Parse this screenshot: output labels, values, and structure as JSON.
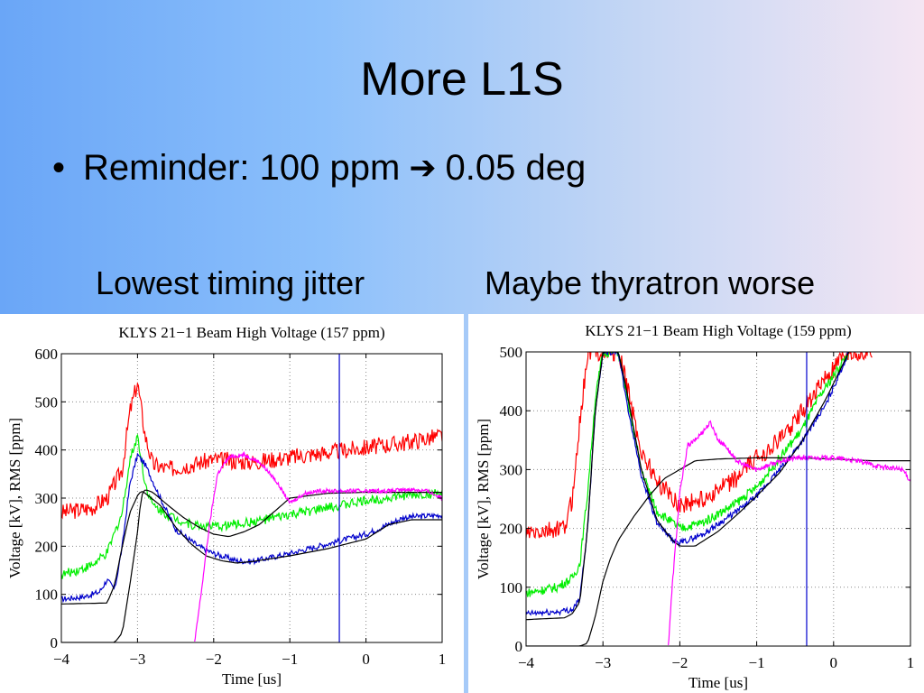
{
  "slide": {
    "title": "More L1S",
    "bullet_prefix": "Reminder: 100 ppm",
    "bullet_suffix": "0.05 deg",
    "caption_left": "Lowest timing jitter",
    "caption_right": "Maybe thyratron worse"
  },
  "chart_data": [
    {
      "type": "line",
      "title": "KLYS 21−1 Beam High Voltage (157 ppm)",
      "xlabel": "Time [us]",
      "ylabel": "Voltage [kV], RMS [ppm]",
      "xlim": [
        -4,
        1
      ],
      "ylim": [
        0,
        600
      ],
      "xticks": [
        "−4",
        "−3",
        "−2",
        "−1",
        "0",
        "1"
      ],
      "yticks": [
        "0",
        "100",
        "200",
        "300",
        "400",
        "500",
        "600"
      ],
      "grid": true,
      "vline_x": -0.35,
      "vline_color": "#0000cc",
      "series": [
        {
          "color": "#ff0000",
          "noise": 18,
          "x": [
            -4,
            -3.6,
            -3.4,
            -3.2,
            -3.1,
            -3.0,
            -2.9,
            -2.8,
            -2.6,
            -2.3,
            -2.0,
            -1.5,
            -1.0,
            -0.5,
            0.0,
            0.5,
            1.0
          ],
          "y": [
            270,
            280,
            300,
            360,
            480,
            540,
            430,
            370,
            360,
            370,
            380,
            375,
            385,
            395,
            405,
            415,
            430
          ]
        },
        {
          "color": "#00ee00",
          "noise": 10,
          "x": [
            -4,
            -3.6,
            -3.4,
            -3.2,
            -3.1,
            -3.0,
            -2.9,
            -2.8,
            -2.6,
            -2.3,
            -2.0,
            -1.5,
            -1.0,
            -0.5,
            0.0,
            0.5,
            1.0
          ],
          "y": [
            140,
            160,
            185,
            270,
            380,
            430,
            330,
            285,
            265,
            245,
            240,
            250,
            265,
            280,
            295,
            305,
            310
          ]
        },
        {
          "color": "#0000cc",
          "noise": 6,
          "x": [
            -4,
            -3.7,
            -3.5,
            -3.4,
            -3.3,
            -3.2,
            -3.1,
            -3.0,
            -2.9,
            -2.7,
            -2.5,
            -2.2,
            -2.0,
            -1.7,
            -1.5,
            -1.0,
            -0.5,
            0.0,
            0.5,
            1.0
          ],
          "y": [
            90,
            95,
            105,
            130,
            110,
            200,
            330,
            390,
            370,
            300,
            235,
            200,
            185,
            170,
            168,
            185,
            205,
            225,
            260,
            265
          ]
        },
        {
          "color": "#000000",
          "noise": 0,
          "x": [
            -4,
            -3.4,
            -3.3,
            -3.2,
            -3.1,
            -3.0,
            -2.95,
            -2.9,
            -2.7,
            -2.5,
            -2.3,
            -2.1,
            -1.9,
            -1.7,
            -1.5,
            -1.0,
            -0.5,
            0.0,
            0.3,
            0.6,
            1.0
          ],
          "y": [
            80,
            82,
            120,
            200,
            270,
            305,
            315,
            310,
            285,
            240,
            205,
            180,
            170,
            165,
            168,
            180,
            195,
            215,
            245,
            255,
            255
          ]
        },
        {
          "color": "#000000",
          "noise": 0,
          "x": [
            -4,
            -3.5,
            -3.3,
            -3.2,
            -3.1,
            -3.0,
            -2.95,
            -2.9,
            -2.8,
            -2.6,
            -2.4,
            -2.2,
            -2.0,
            -1.8,
            -1.6,
            -1.4,
            -1.0,
            -0.5,
            0.0,
            0.5,
            1.0
          ],
          "y": [
            0,
            0,
            0,
            20,
            120,
            230,
            305,
            318,
            312,
            285,
            260,
            240,
            225,
            220,
            230,
            245,
            300,
            310,
            312,
            312,
            312
          ]
        },
        {
          "color": "#ff00ff",
          "noise": 4,
          "x": [
            -2.25,
            -2.15,
            -2.05,
            -1.95,
            -1.8,
            -1.6,
            -1.4,
            -1.2,
            -1.0,
            -0.8,
            -0.6,
            -0.3,
            0.0,
            0.3,
            0.6,
            0.8,
            1.0
          ],
          "y": [
            0,
            120,
            250,
            350,
            385,
            390,
            375,
            340,
            290,
            310,
            315,
            315,
            315,
            315,
            318,
            315,
            300
          ]
        }
      ]
    },
    {
      "type": "line",
      "title": "KLYS 21−1 Beam High Voltage (159 ppm)",
      "xlabel": "Time [us]",
      "ylabel": "Voltage [kV], RMS [ppm]",
      "xlim": [
        -4,
        1
      ],
      "ylim": [
        0,
        500
      ],
      "xticks": [
        "−4",
        "−3",
        "−2",
        "−1",
        "0",
        "1"
      ],
      "yticks": [
        "0",
        "100",
        "200",
        "300",
        "400",
        "500"
      ],
      "grid": true,
      "vline_x": -0.35,
      "vline_color": "#0000cc",
      "series": [
        {
          "color": "#ff0000",
          "noise": 16,
          "x": [
            -4,
            -3.7,
            -3.5,
            -3.4,
            -3.3,
            -3.2,
            -3.1,
            -3.0,
            -2.9,
            -2.8,
            -2.7,
            -2.5,
            -2.3,
            -2.0,
            -1.7,
            -1.3,
            -1.0,
            -0.7,
            -0.4,
            -0.2,
            0.2,
            0.5
          ],
          "y": [
            190,
            195,
            200,
            250,
            380,
            500,
            500,
            500,
            500,
            500,
            450,
            330,
            280,
            240,
            250,
            280,
            320,
            350,
            400,
            440,
            500,
            500
          ]
        },
        {
          "color": "#00ee00",
          "noise": 8,
          "x": [
            -4,
            -3.6,
            -3.4,
            -3.3,
            -3.2,
            -3.1,
            -3.0,
            -2.9,
            -2.8,
            -2.7,
            -2.5,
            -2.3,
            -2.0,
            -1.7,
            -1.3,
            -1.0,
            -0.7,
            -0.4,
            -0.2,
            0.2
          ],
          "y": [
            90,
            100,
            115,
            140,
            260,
            420,
            500,
            500,
            500,
            430,
            300,
            230,
            200,
            210,
            240,
            270,
            320,
            370,
            420,
            500
          ]
        },
        {
          "color": "#0000cc",
          "noise": 5,
          "x": [
            -4,
            -3.6,
            -3.4,
            -3.3,
            -3.2,
            -3.1,
            -3.0,
            -2.9,
            -2.8,
            -2.7,
            -2.5,
            -2.3,
            -2.1,
            -2.0,
            -1.7,
            -1.3,
            -1.0,
            -0.7,
            -0.4,
            -0.1,
            0.2
          ],
          "y": [
            55,
            58,
            62,
            80,
            200,
            400,
            500,
            500,
            500,
            420,
            290,
            210,
            180,
            175,
            190,
            225,
            255,
            300,
            350,
            410,
            500
          ]
        },
        {
          "color": "#000000",
          "noise": 0,
          "x": [
            -4,
            -3.5,
            -3.4,
            -3.3,
            -3.2,
            -3.1,
            -3.0,
            -2.9,
            -2.8,
            -2.7,
            -2.5,
            -2.3,
            -2.1,
            -2.0,
            -1.8,
            -1.5,
            -1.2,
            -1.0,
            -0.7,
            -0.4,
            -0.1,
            0.2
          ],
          "y": [
            45,
            48,
            55,
            75,
            200,
            400,
            500,
            500,
            500,
            440,
            300,
            215,
            180,
            170,
            170,
            195,
            230,
            255,
            295,
            350,
            420,
            500
          ]
        },
        {
          "color": "#000000",
          "noise": 0,
          "x": [
            -4,
            -3.3,
            -3.2,
            -3.1,
            -3.0,
            -2.9,
            -2.8,
            -2.6,
            -2.4,
            -2.2,
            -2.0,
            -1.8,
            -1.5,
            -1.0,
            -0.5,
            0.0,
            0.5,
            1.0
          ],
          "y": [
            0,
            0,
            5,
            50,
            110,
            150,
            180,
            220,
            255,
            285,
            300,
            315,
            318,
            320,
            320,
            318,
            315,
            315
          ]
        },
        {
          "color": "#ff00ff",
          "noise": 4,
          "x": [
            -2.15,
            -2.1,
            -2.05,
            -2.0,
            -1.95,
            -1.9,
            -1.8,
            -1.6,
            -1.5,
            -1.4,
            -1.3,
            -1.2,
            -1.0,
            -0.8,
            -0.5,
            -0.2,
            0.0,
            0.3,
            0.6,
            0.9,
            1.0
          ],
          "y": [
            0,
            100,
            180,
            260,
            300,
            340,
            350,
            380,
            350,
            340,
            320,
            310,
            300,
            310,
            320,
            320,
            320,
            315,
            305,
            300,
            280
          ]
        }
      ]
    }
  ]
}
